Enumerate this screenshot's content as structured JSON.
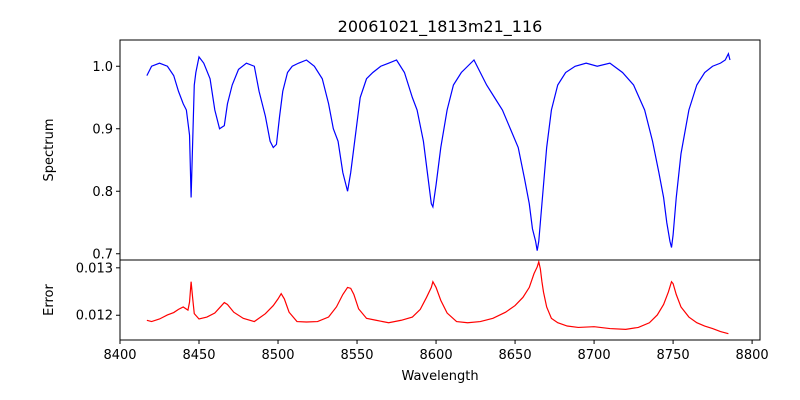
{
  "chart_data": [
    {
      "type": "line",
      "title": "20061021_1813m21_116",
      "xlabel": "",
      "ylabel": "Spectrum",
      "xlim": [
        8400,
        8805
      ],
      "ylim": [
        0.69,
        1.042
      ],
      "yticks": [
        0.7,
        0.8,
        0.9,
        1.0
      ],
      "ytick_labels": [
        "0.7",
        "0.8",
        "0.9",
        "1.0"
      ],
      "series": [
        {
          "name": "Spectrum",
          "color": "#0000ff",
          "x": [
            8417,
            8420,
            8425,
            8430,
            8434,
            8437,
            8440,
            8442,
            8444,
            8445,
            8446,
            8447,
            8448,
            8450,
            8453,
            8457,
            8460,
            8463,
            8466,
            8468,
            8471,
            8475,
            8480,
            8485,
            8488,
            8492,
            8495,
            8497,
            8499,
            8501,
            8503,
            8506,
            8509,
            8513,
            8518,
            8523,
            8528,
            8532,
            8535,
            8538,
            8541,
            8543,
            8544,
            8546,
            8548,
            8552,
            8556,
            8560,
            8565,
            8570,
            8575,
            8580,
            8585,
            8588,
            8592,
            8595,
            8597,
            8598,
            8600,
            8603,
            8607,
            8611,
            8616,
            8620,
            8624,
            8628,
            8632,
            8637,
            8642,
            8647,
            8652,
            8656,
            8659,
            8661,
            8663,
            8664,
            8665,
            8666,
            8667,
            8668,
            8670,
            8673,
            8677,
            8682,
            8688,
            8695,
            8702,
            8710,
            8718,
            8725,
            8732,
            8737,
            8741,
            8744,
            8746,
            8748,
            8749,
            8750,
            8752,
            8755,
            8760,
            8765,
            8770,
            8775,
            8780,
            8783,
            8785,
            8786
          ],
          "y": [
            0.985,
            1.0,
            1.005,
            1.0,
            0.985,
            0.96,
            0.94,
            0.93,
            0.89,
            0.79,
            0.88,
            0.97,
            0.99,
            1.015,
            1.005,
            0.98,
            0.93,
            0.9,
            0.905,
            0.94,
            0.97,
            0.995,
            1.005,
            1.0,
            0.96,
            0.92,
            0.88,
            0.87,
            0.875,
            0.92,
            0.96,
            0.99,
            1.0,
            1.005,
            1.01,
            1.0,
            0.98,
            0.94,
            0.9,
            0.88,
            0.83,
            0.81,
            0.8,
            0.83,
            0.87,
            0.95,
            0.98,
            0.99,
            1.0,
            1.005,
            1.01,
            0.99,
            0.95,
            0.93,
            0.88,
            0.82,
            0.78,
            0.775,
            0.81,
            0.87,
            0.93,
            0.97,
            0.99,
            1.0,
            1.01,
            0.99,
            0.97,
            0.95,
            0.93,
            0.9,
            0.87,
            0.82,
            0.78,
            0.74,
            0.72,
            0.705,
            0.72,
            0.75,
            0.78,
            0.81,
            0.87,
            0.93,
            0.97,
            0.99,
            1.0,
            1.005,
            1.0,
            1.005,
            0.99,
            0.97,
            0.93,
            0.88,
            0.83,
            0.79,
            0.75,
            0.72,
            0.71,
            0.73,
            0.79,
            0.86,
            0.93,
            0.97,
            0.99,
            1.0,
            1.005,
            1.01,
            1.02,
            1.01
          ]
        }
      ]
    },
    {
      "type": "line",
      "title": "",
      "xlabel": "Wavelength",
      "ylabel": "Error",
      "xlim": [
        8400,
        8805
      ],
      "ylim": [
        0.011478,
        0.013165
      ],
      "yticks": [
        0.012,
        0.013
      ],
      "ytick_labels": [
        "0.012",
        "0.013"
      ],
      "xticks": [
        8400,
        8450,
        8500,
        8550,
        8600,
        8650,
        8700,
        8750,
        8800
      ],
      "xtick_labels": [
        "8400",
        "8450",
        "8500",
        "8550",
        "8600",
        "8650",
        "8700",
        "8750",
        "8800"
      ],
      "series": [
        {
          "name": "Error",
          "color": "#ff0000",
          "x": [
            8417,
            8420,
            8425,
            8430,
            8434,
            8437,
            8440,
            8443,
            8444,
            8445,
            8446,
            8447,
            8450,
            8455,
            8460,
            8464,
            8466,
            8468,
            8472,
            8478,
            8485,
            8492,
            8497,
            8500,
            8502,
            8504,
            8507,
            8512,
            8518,
            8525,
            8532,
            8537,
            8541,
            8544,
            8546,
            8548,
            8551,
            8556,
            8562,
            8570,
            8578,
            8585,
            8590,
            8594,
            8597,
            8598,
            8600,
            8603,
            8607,
            8613,
            8620,
            8628,
            8636,
            8644,
            8650,
            8655,
            8659,
            8662,
            8664,
            8665,
            8666,
            8667,
            8668,
            8670,
            8673,
            8677,
            8683,
            8690,
            8700,
            8710,
            8720,
            8728,
            8735,
            8740,
            8744,
            8747,
            8749,
            8750,
            8752,
            8755,
            8760,
            8765,
            8770,
            8775,
            8780,
            8785
          ],
          "y": [
            0.011894,
            0.011867,
            0.011921,
            0.012006,
            0.012057,
            0.012124,
            0.012175,
            0.012107,
            0.012277,
            0.012707,
            0.012354,
            0.012033,
            0.011921,
            0.011962,
            0.012047,
            0.012194,
            0.012267,
            0.012227,
            0.012064,
            0.011935,
            0.011867,
            0.012033,
            0.012204,
            0.012345,
            0.012455,
            0.012345,
            0.012064,
            0.011867,
            0.011857,
            0.011867,
            0.011962,
            0.012177,
            0.012437,
            0.012587,
            0.012567,
            0.012437,
            0.012134,
            0.011935,
            0.011894,
            0.011842,
            0.011894,
            0.011962,
            0.012124,
            0.012378,
            0.012587,
            0.012707,
            0.012587,
            0.012314,
            0.012047,
            0.011867,
            0.011842,
            0.011867,
            0.011935,
            0.012064,
            0.012204,
            0.012378,
            0.012587,
            0.012877,
            0.013018,
            0.013127,
            0.012978,
            0.012707,
            0.012488,
            0.012174,
            0.011935,
            0.011842,
            0.011773,
            0.011743,
            0.011759,
            0.011719,
            0.011702,
            0.011743,
            0.011842,
            0.012006,
            0.012227,
            0.012488,
            0.012707,
            0.012667,
            0.012437,
            0.012174,
            0.011962,
            0.011842,
            0.011773,
            0.011719,
            0.011655,
            0.011612
          ]
        }
      ]
    }
  ]
}
